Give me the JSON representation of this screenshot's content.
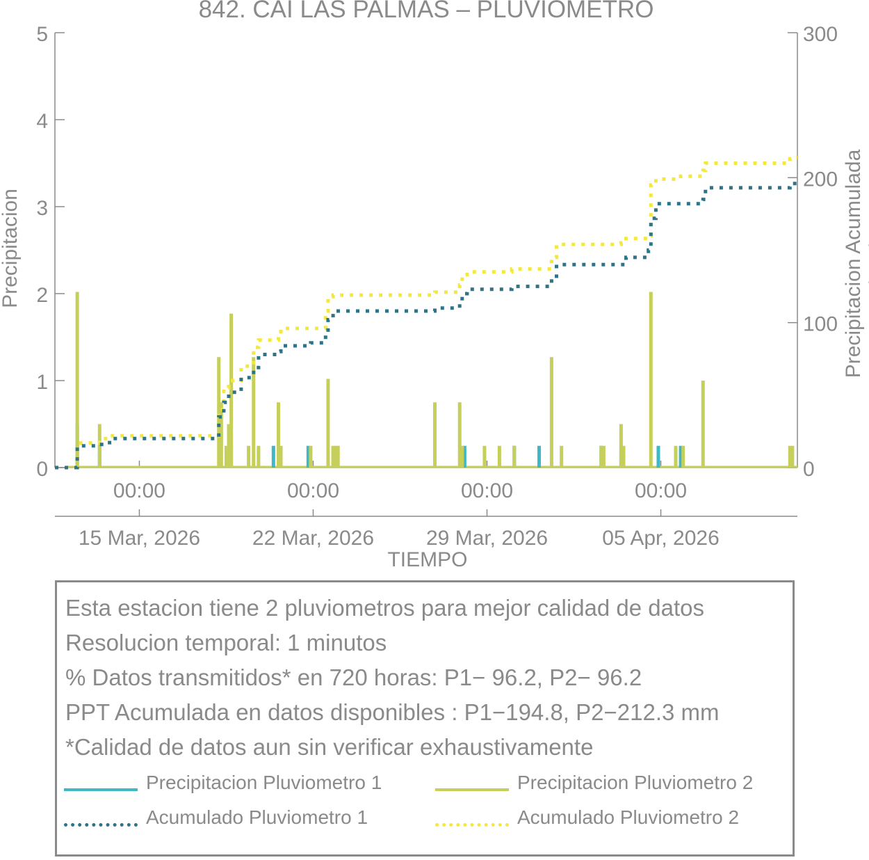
{
  "chart_data": {
    "type": "bar",
    "title": "842. CAI LAS PALMAS – PLUVIOMETRO",
    "xlabel": "TIEMPO",
    "ylabel_left": "Precipitacion",
    "ylabel_right": "Precipitacion Acumulada (mm)",
    "ylim_left": [
      0,
      5
    ],
    "ylim_right": [
      0,
      300
    ],
    "yticks_left": [
      "0",
      "1",
      "2",
      "3",
      "4",
      "5"
    ],
    "yticks_right": [
      "0",
      "100",
      "200",
      "300"
    ],
    "x_range_days": [
      11.6,
      41.5
    ],
    "xticks_time": [
      "00:00",
      "00:00",
      "00:00",
      "00:00"
    ],
    "xticks_date": [
      "15 Mar, 2026",
      "22 Mar, 2026",
      "29 Mar, 2026",
      "05 Apr, 2026"
    ],
    "xtick_days": [
      15,
      22,
      29,
      36
    ],
    "grid": false,
    "colors": {
      "p1": "#3fb8c6",
      "p2": "#c5cf5a",
      "acc1": "#2e7489",
      "acc2": "#f3e840",
      "axis": "#8a8a8a"
    },
    "series": [
      {
        "name": "Precipitacion Pluviometro 1",
        "axis": "left",
        "kind": "bars",
        "points": [
          [
            12.5,
            0.5
          ],
          [
            13.4,
            0.25
          ],
          [
            18.7,
            0.25
          ],
          [
            20.4,
            0.25
          ],
          [
            21.8,
            0.25
          ],
          [
            28.1,
            0.25
          ],
          [
            30.1,
            0.25
          ],
          [
            31.1,
            0.25
          ],
          [
            33.6,
            0.25
          ],
          [
            34.4,
            0.25
          ],
          [
            35.9,
            0.25
          ],
          [
            36.8,
            0.25
          ]
        ]
      },
      {
        "name": "Precipitacion Pluviometro 2",
        "axis": "left",
        "kind": "bars",
        "points": [
          [
            12.5,
            2.02
          ],
          [
            13.4,
            0.5
          ],
          [
            18.2,
            1.27
          ],
          [
            18.3,
            0.75
          ],
          [
            18.5,
            0.25
          ],
          [
            18.6,
            0.5
          ],
          [
            18.7,
            1.77
          ],
          [
            19.4,
            0.25
          ],
          [
            19.6,
            1.27
          ],
          [
            19.8,
            0.25
          ],
          [
            20.6,
            0.75
          ],
          [
            20.7,
            0.25
          ],
          [
            21.9,
            0.25
          ],
          [
            22.6,
            1.02
          ],
          [
            22.8,
            0.25
          ],
          [
            22.9,
            0.25
          ],
          [
            23.0,
            0.25
          ],
          [
            26.9,
            0.75
          ],
          [
            27.9,
            0.75
          ],
          [
            28.0,
            0.25
          ],
          [
            28.9,
            0.25
          ],
          [
            29.5,
            0.25
          ],
          [
            30.1,
            0.25
          ],
          [
            31.6,
            1.27
          ],
          [
            32.0,
            0.25
          ],
          [
            33.6,
            0.25
          ],
          [
            33.7,
            0.25
          ],
          [
            34.4,
            0.5
          ],
          [
            34.5,
            0.25
          ],
          [
            35.6,
            2.02
          ],
          [
            36.6,
            0.25
          ],
          [
            36.9,
            0.25
          ],
          [
            37.7,
            1.0
          ],
          [
            41.2,
            0.25
          ],
          [
            41.3,
            0.25
          ]
        ]
      },
      {
        "name": "Acumulado Pluviometro 1",
        "axis": "right",
        "kind": "step",
        "points": [
          [
            11.6,
            0
          ],
          [
            12.4,
            0
          ],
          [
            12.5,
            15
          ],
          [
            13.4,
            16
          ],
          [
            13.8,
            20
          ],
          [
            18.1,
            20
          ],
          [
            18.2,
            35
          ],
          [
            18.4,
            45
          ],
          [
            18.6,
            52
          ],
          [
            19.1,
            62
          ],
          [
            19.6,
            69
          ],
          [
            19.8,
            78
          ],
          [
            20.6,
            80
          ],
          [
            20.7,
            84
          ],
          [
            21.9,
            86
          ],
          [
            22.5,
            92
          ],
          [
            22.6,
            102
          ],
          [
            22.8,
            108
          ],
          [
            26.8,
            108
          ],
          [
            26.9,
            110
          ],
          [
            27.9,
            113
          ],
          [
            28.0,
            120
          ],
          [
            28.2,
            123
          ],
          [
            30.0,
            125
          ],
          [
            31.6,
            130
          ],
          [
            31.8,
            140
          ],
          [
            34.4,
            140
          ],
          [
            34.6,
            145
          ],
          [
            35.5,
            150
          ],
          [
            35.6,
            172
          ],
          [
            35.8,
            182
          ],
          [
            36.8,
            182
          ],
          [
            37.7,
            185
          ],
          [
            37.8,
            193
          ],
          [
            41.0,
            193
          ],
          [
            41.2,
            195
          ],
          [
            41.3,
            196
          ],
          [
            41.5,
            196
          ]
        ]
      },
      {
        "name": "Acumulado Pluviometro 2",
        "axis": "right",
        "kind": "step",
        "points": [
          [
            11.6,
            0
          ],
          [
            12.4,
            0
          ],
          [
            12.5,
            17
          ],
          [
            13.4,
            20
          ],
          [
            13.8,
            22
          ],
          [
            18.1,
            22
          ],
          [
            18.2,
            40
          ],
          [
            18.4,
            55
          ],
          [
            18.6,
            60
          ],
          [
            19.1,
            70
          ],
          [
            19.6,
            83
          ],
          [
            19.8,
            88
          ],
          [
            20.6,
            91
          ],
          [
            20.7,
            96
          ],
          [
            21.9,
            96
          ],
          [
            22.5,
            108
          ],
          [
            22.6,
            118
          ],
          [
            22.8,
            119
          ],
          [
            26.9,
            121
          ],
          [
            27.9,
            126
          ],
          [
            28.0,
            133
          ],
          [
            28.2,
            135
          ],
          [
            30.0,
            137
          ],
          [
            31.6,
            145
          ],
          [
            31.8,
            154
          ],
          [
            34.4,
            155
          ],
          [
            34.6,
            158
          ],
          [
            35.5,
            160
          ],
          [
            35.6,
            195
          ],
          [
            35.8,
            199
          ],
          [
            36.8,
            201
          ],
          [
            37.7,
            205
          ],
          [
            37.8,
            210
          ],
          [
            41.0,
            210
          ],
          [
            41.2,
            213
          ],
          [
            41.3,
            214
          ],
          [
            41.5,
            214
          ]
        ]
      }
    ]
  },
  "info": {
    "lines": [
      "Esta estacion tiene 2 pluviometros para mejor calidad de datos",
      "Resolucion temporal: 1 minutos",
      "% Datos transmitidos* en 720 horas: P1− 96.2, P2− 96.2",
      "PPT Acumulada en datos disponibles : P1−194.8, P2−212.3 mm",
      "*Calidad de datos aun sin verificar exhaustivamente"
    ],
    "legend": [
      "Precipitacion Pluviometro 1",
      "Precipitacion Pluviometro 2",
      "Acumulado Pluviometro 1",
      "Acumulado Pluviometro 2"
    ]
  }
}
